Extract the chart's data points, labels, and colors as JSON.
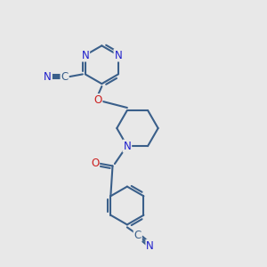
{
  "bg_color": "#e8e8e8",
  "bond_color": "#3a5f8a",
  "N_color": "#2020cc",
  "O_color": "#cc2020",
  "C_color": "#3a5f8a",
  "bond_width": 1.5,
  "font_size": 8.5,
  "figsize": [
    3.0,
    3.0
  ],
  "dpi": 100,
  "xlim": [
    0,
    10
  ],
  "ylim": [
    0,
    10
  ]
}
